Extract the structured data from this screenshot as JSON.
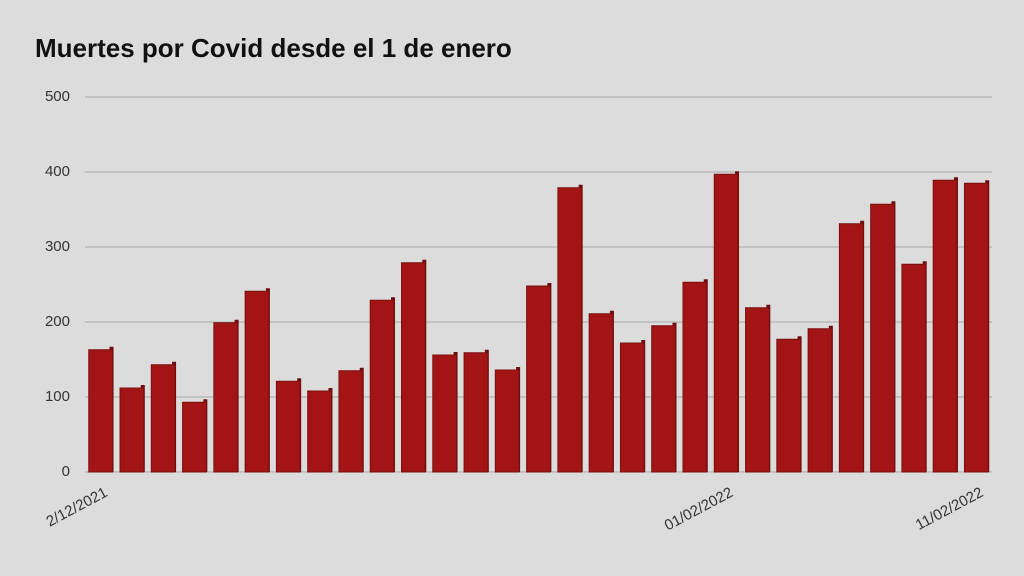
{
  "chart_data": {
    "type": "bar",
    "title": "Muertes por Covid desde el 1 de enero",
    "categories": [
      "2/12/2021",
      null,
      null,
      null,
      null,
      null,
      null,
      null,
      null,
      null,
      null,
      null,
      null,
      null,
      null,
      null,
      null,
      null,
      null,
      null,
      "01/02/2022",
      null,
      null,
      null,
      null,
      null,
      null,
      null,
      "11/02/2022"
    ],
    "values": [
      163,
      112,
      143,
      93,
      199,
      241,
      121,
      108,
      135,
      229,
      279,
      156,
      159,
      136,
      248,
      379,
      211,
      172,
      195,
      253,
      397,
      219,
      177,
      191,
      331,
      357,
      277,
      389,
      385
    ],
    "color": "#a31515",
    "ylim": [
      0,
      500
    ],
    "yticks": [
      0,
      100,
      200,
      300,
      400,
      500
    ],
    "grid": true
  }
}
